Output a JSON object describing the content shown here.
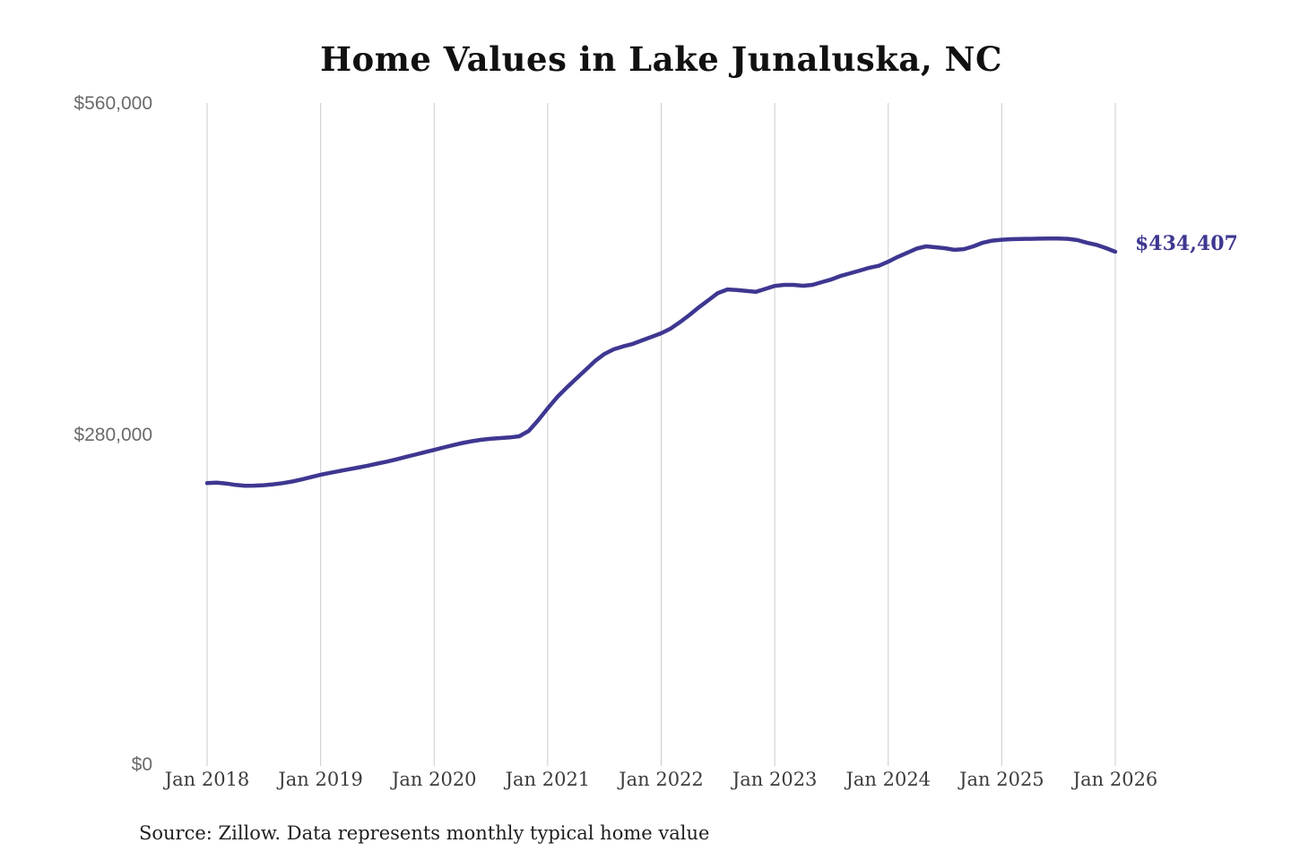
{
  "title": "Home Values in Lake Junaluska, NC",
  "source_note": "Source: Zillow. Data represents monthly typical home value",
  "annotation": {
    "latest_value_label": "$434,407"
  },
  "colors": {
    "line": "#3e3791",
    "annotation": "#3e3791",
    "grid": "#cbcbcb",
    "y_labels": "#6a6a6a",
    "x_labels": "#3d3d3d",
    "title": "#111111",
    "background": "#ffffff"
  },
  "chart_data": {
    "type": "line",
    "title": "Home Values in Lake Junaluska, NC",
    "x": {
      "start": "2018-01",
      "step": "1 month",
      "count": 97,
      "end": "2026-01"
    },
    "x_tick_labels": [
      "Jan 2018",
      "Jan 2019",
      "Jan 2020",
      "Jan 2021",
      "Jan 2022",
      "Jan 2023",
      "Jan 2024",
      "Jan 2025",
      "Jan 2026"
    ],
    "y_tick_labels": [
      "$560,000",
      "$280,000",
      "$0"
    ],
    "ylim": [
      0,
      560000
    ],
    "grid": "vertical-only",
    "grid_color": "#cbcbcb",
    "line_color": "#3e3791",
    "unit": "USD",
    "latest_value": 434407,
    "latest_value_label": "$434,407",
    "values": [
      239000,
      239300,
      238600,
      237400,
      236700,
      236800,
      237200,
      237900,
      238900,
      240300,
      242000,
      244000,
      246000,
      247600,
      249100,
      250600,
      252100,
      253700,
      255400,
      257100,
      259000,
      261000,
      263000,
      265000,
      267000,
      269000,
      271000,
      272800,
      274300,
      275500,
      276400,
      277000,
      277500,
      278500,
      283000,
      292000,
      302000,
      311500,
      319500,
      327000,
      334500,
      342000,
      348000,
      352000,
      354500,
      356500,
      359500,
      362500,
      365500,
      369500,
      375000,
      381000,
      387500,
      393500,
      399500,
      402500,
      402000,
      401200,
      400500,
      403000,
      405500,
      406400,
      406400,
      405600,
      406400,
      408700,
      411000,
      414000,
      416200,
      418500,
      420800,
      422500,
      426000,
      430000,
      433500,
      437000,
      438900,
      438200,
      437300,
      436000,
      436600,
      438900,
      442000,
      443800,
      444500,
      445000,
      445200,
      445300,
      445400,
      445500,
      445500,
      445300,
      444200,
      442000,
      440200,
      437500,
      434407
    ]
  }
}
